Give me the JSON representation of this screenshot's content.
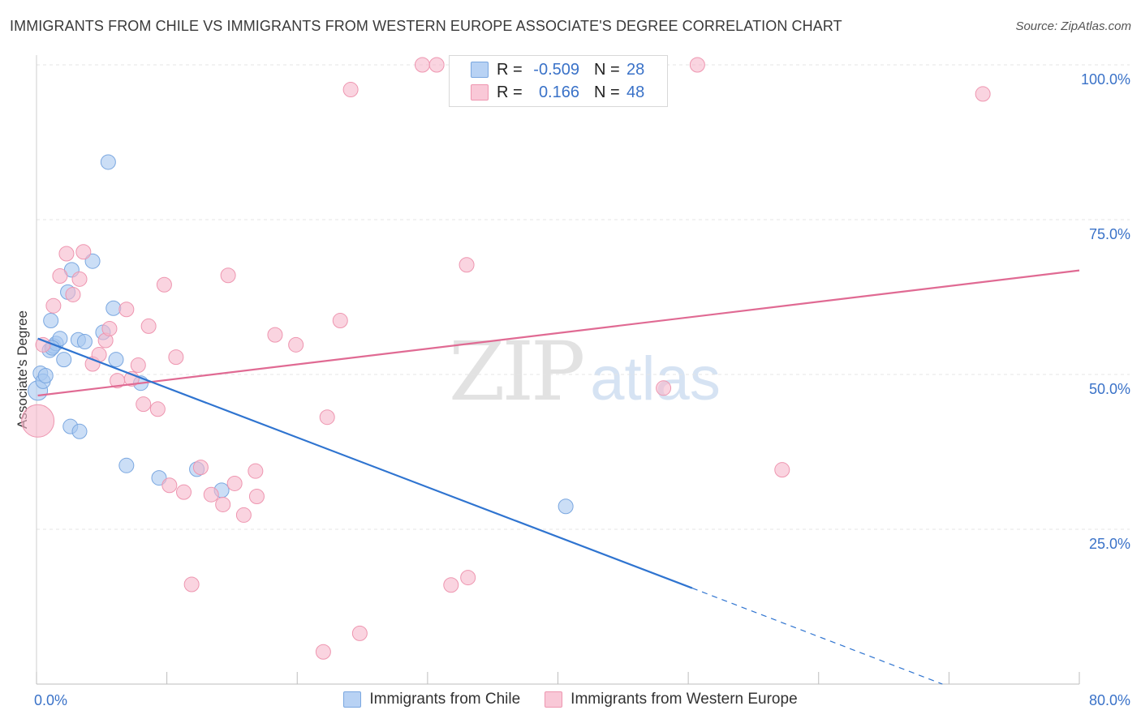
{
  "title": "IMMIGRANTS FROM CHILE VS IMMIGRANTS FROM WESTERN EUROPE ASSOCIATE'S DEGREE CORRELATION CHART",
  "source": "Source: ZipAtlas.com",
  "watermark": {
    "zip": "ZIP",
    "atlas": "atlas"
  },
  "legend": {
    "series": [
      {
        "r_label": "R =",
        "r_value": "-0.509",
        "n_label": "N =",
        "n_value": "28"
      },
      {
        "r_label": "R =",
        "r_value": "0.166",
        "n_label": "N =",
        "n_value": "48"
      }
    ]
  },
  "colors": {
    "blue_fill": "#a9c8f0",
    "blue_stroke": "#7aa7e0",
    "blue_line": "#2f74d0",
    "pink_fill": "#f6b8cb",
    "pink_stroke": "#ee96b0",
    "pink_line": "#e06a93",
    "tick_label": "#3a72c8",
    "grid": "#e4e4e4"
  },
  "chart_data": {
    "type": "scatter",
    "title": "IMMIGRANTS FROM CHILE VS IMMIGRANTS FROM WESTERN EUROPE ASSOCIATE'S DEGREE CORRELATION CHART",
    "xlabel": "",
    "ylabel": "Associate's Degree",
    "xlim": [
      0,
      80
    ],
    "ylim": [
      0,
      100
    ],
    "x_tick_labels": [
      "0.0%",
      "80.0%"
    ],
    "y_ticks": [
      25,
      50,
      75,
      100
    ],
    "y_tick_labels": [
      "25.0%",
      "50.0%",
      "75.0%",
      "100.0%"
    ],
    "grid": true,
    "legend_position": "bottom",
    "series": [
      {
        "name": "Immigrants from Chile",
        "color": "#a9c8f0",
        "r": -0.509,
        "n": 28,
        "points": [
          [
            0.1,
            47.4,
            12
          ],
          [
            0.3,
            50.2,
            9
          ],
          [
            0.5,
            48.9,
            9
          ],
          [
            0.7,
            49.8,
            9
          ],
          [
            1.0,
            53.9,
            9
          ],
          [
            1.1,
            58.7,
            9
          ],
          [
            1.3,
            54.6,
            9
          ],
          [
            1.5,
            55.0,
            9
          ],
          [
            1.8,
            55.8,
            9
          ],
          [
            2.1,
            52.4,
            9
          ],
          [
            2.4,
            63.3,
            9
          ],
          [
            2.7,
            66.9,
            9
          ],
          [
            2.6,
            41.6,
            9
          ],
          [
            3.2,
            55.6,
            9
          ],
          [
            3.3,
            40.8,
            9
          ],
          [
            3.7,
            55.3,
            9
          ],
          [
            4.3,
            68.3,
            9
          ],
          [
            5.1,
            56.8,
            9
          ],
          [
            5.5,
            84.3,
            9
          ],
          [
            5.9,
            60.7,
            9
          ],
          [
            6.1,
            52.4,
            9
          ],
          [
            6.9,
            35.3,
            9
          ],
          [
            8.0,
            48.6,
            9
          ],
          [
            9.4,
            33.3,
            9
          ],
          [
            12.3,
            34.7,
            9
          ],
          [
            14.2,
            31.3,
            9
          ],
          [
            40.6,
            28.7,
            9
          ],
          [
            1.2,
            54.3,
            9
          ]
        ],
        "trend": {
          "x": [
            0.1,
            50.3
          ],
          "y": [
            55.8,
            15.5
          ]
        },
        "trend_extension": {
          "x": [
            50.3,
            69.5
          ],
          "y": [
            15.5,
            0.0
          ]
        }
      },
      {
        "name": "Immigrants from Western Europe",
        "color": "#f6b8cb",
        "r": 0.166,
        "n": 48,
        "points": [
          [
            0.1,
            42.5,
            20
          ],
          [
            0.5,
            54.8,
            9
          ],
          [
            1.3,
            61.1,
            9
          ],
          [
            1.8,
            65.9,
            9
          ],
          [
            2.3,
            69.5,
            9
          ],
          [
            2.8,
            62.9,
            9
          ],
          [
            3.3,
            65.4,
            9
          ],
          [
            3.6,
            69.8,
            9
          ],
          [
            4.3,
            51.7,
            9
          ],
          [
            4.8,
            53.2,
            9
          ],
          [
            5.3,
            55.5,
            9
          ],
          [
            5.6,
            57.4,
            9
          ],
          [
            6.2,
            49.0,
            9
          ],
          [
            6.9,
            60.5,
            9
          ],
          [
            7.3,
            49.3,
            9
          ],
          [
            7.8,
            51.5,
            9
          ],
          [
            8.2,
            45.2,
            9
          ],
          [
            8.6,
            57.8,
            9
          ],
          [
            9.3,
            44.4,
            9
          ],
          [
            9.8,
            64.5,
            9
          ],
          [
            10.2,
            32.1,
            9
          ],
          [
            10.7,
            52.8,
            9
          ],
          [
            11.3,
            31.0,
            9
          ],
          [
            11.9,
            16.1,
            9
          ],
          [
            12.6,
            35.0,
            9
          ],
          [
            13.4,
            30.6,
            9
          ],
          [
            14.3,
            29.0,
            9
          ],
          [
            14.7,
            66.0,
            9
          ],
          [
            15.2,
            32.4,
            9
          ],
          [
            15.9,
            27.3,
            9
          ],
          [
            16.8,
            34.4,
            9
          ],
          [
            16.9,
            30.3,
            9
          ],
          [
            18.3,
            56.4,
            9
          ],
          [
            19.9,
            54.8,
            9
          ],
          [
            22.0,
            5.2,
            9
          ],
          [
            22.3,
            43.1,
            9
          ],
          [
            23.3,
            58.7,
            9
          ],
          [
            24.1,
            96.0,
            9
          ],
          [
            24.8,
            8.2,
            9
          ],
          [
            29.6,
            100.0,
            9
          ],
          [
            30.7,
            100.0,
            9
          ],
          [
            31.8,
            16.0,
            9
          ],
          [
            33.1,
            17.2,
            9
          ],
          [
            33.0,
            67.7,
            9
          ],
          [
            48.1,
            47.8,
            9
          ],
          [
            50.7,
            100.0,
            9
          ],
          [
            57.2,
            34.6,
            9
          ],
          [
            72.6,
            95.3,
            9
          ]
        ],
        "trend": {
          "x": [
            0.1,
            80.0
          ],
          "y": [
            46.6,
            66.8
          ]
        }
      }
    ]
  }
}
